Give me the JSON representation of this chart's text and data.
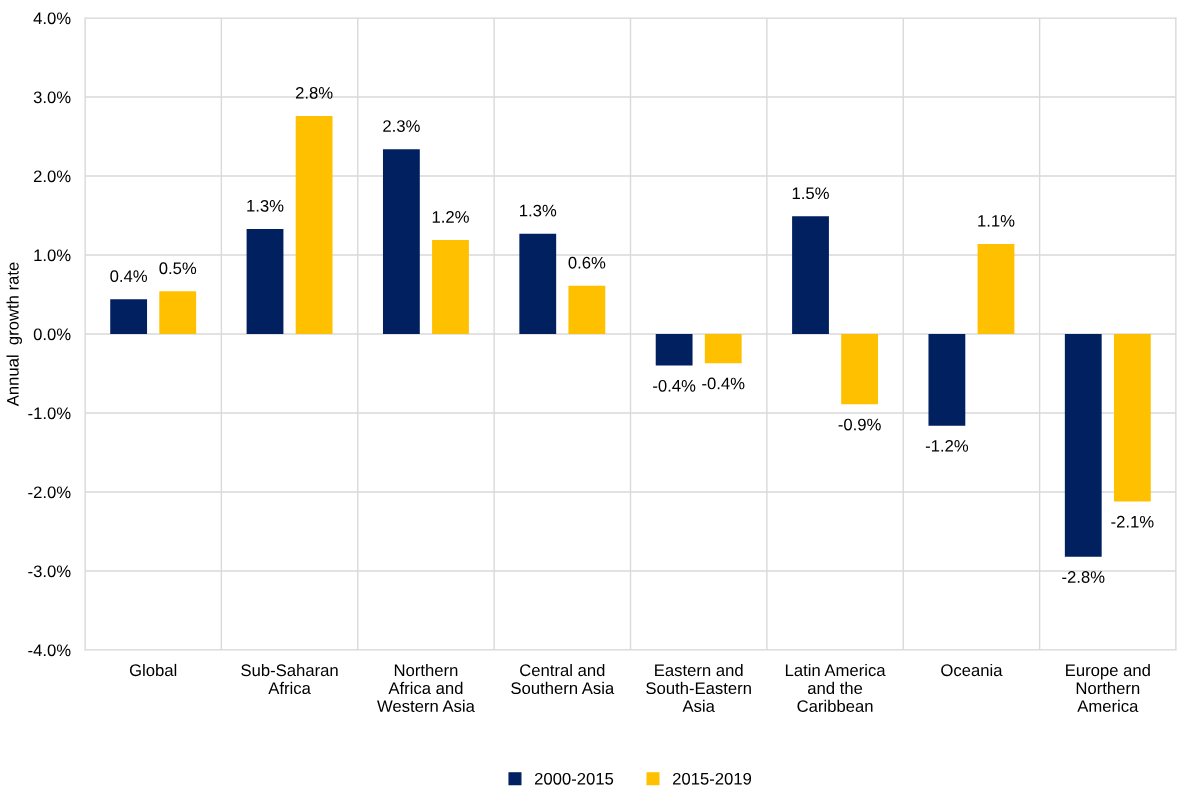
{
  "chart_data": {
    "type": "bar",
    "ylabel": "Annual  growth rate",
    "categories": [
      "Global",
      "Sub-Saharan\nAfrica",
      "Northern\nAfrica and\nWestern Asia",
      "Central and\nSouthern Asia",
      "Eastern and\nSouth-Eastern\nAsia",
      "Latin America\nand the\nCaribbean",
      "Oceania",
      "Europe and\nNorthern\nAmerica"
    ],
    "series": [
      {
        "name": "2000-2015",
        "color": "#002060",
        "values": [
          0.44,
          1.33,
          2.34,
          1.27,
          -0.4,
          1.49,
          -1.16,
          -2.82
        ],
        "value_labels": [
          "0.4%",
          "1.3%",
          "2.3%",
          "1.3%",
          "-0.4%",
          "1.5%",
          "-1.2%",
          "-2.8%"
        ]
      },
      {
        "name": "2015-2019",
        "color": "#ffc000",
        "values": [
          0.54,
          2.76,
          1.19,
          0.61,
          -0.37,
          -0.89,
          1.14,
          -2.12
        ],
        "value_labels": [
          "0.5%",
          "2.8%",
          "1.2%",
          "0.6%",
          "-0.4%",
          "-0.9%",
          "1.1%",
          "-2.1%"
        ]
      }
    ],
    "ylim": [
      -4,
      4
    ],
    "yticks": [
      {
        "value": -4,
        "label": "-4.0%"
      },
      {
        "value": -3,
        "label": "-3.0%"
      },
      {
        "value": -2,
        "label": "-2.0%"
      },
      {
        "value": -1,
        "label": "-1.0%"
      },
      {
        "value": 0,
        "label": "0.0%"
      },
      {
        "value": 1,
        "label": "1.0%"
      },
      {
        "value": 2,
        "label": "2.0%"
      },
      {
        "value": 3,
        "label": "3.0%"
      },
      {
        "value": 4,
        "label": "4.0%"
      }
    ],
    "grid": true,
    "legend": "bottom"
  }
}
